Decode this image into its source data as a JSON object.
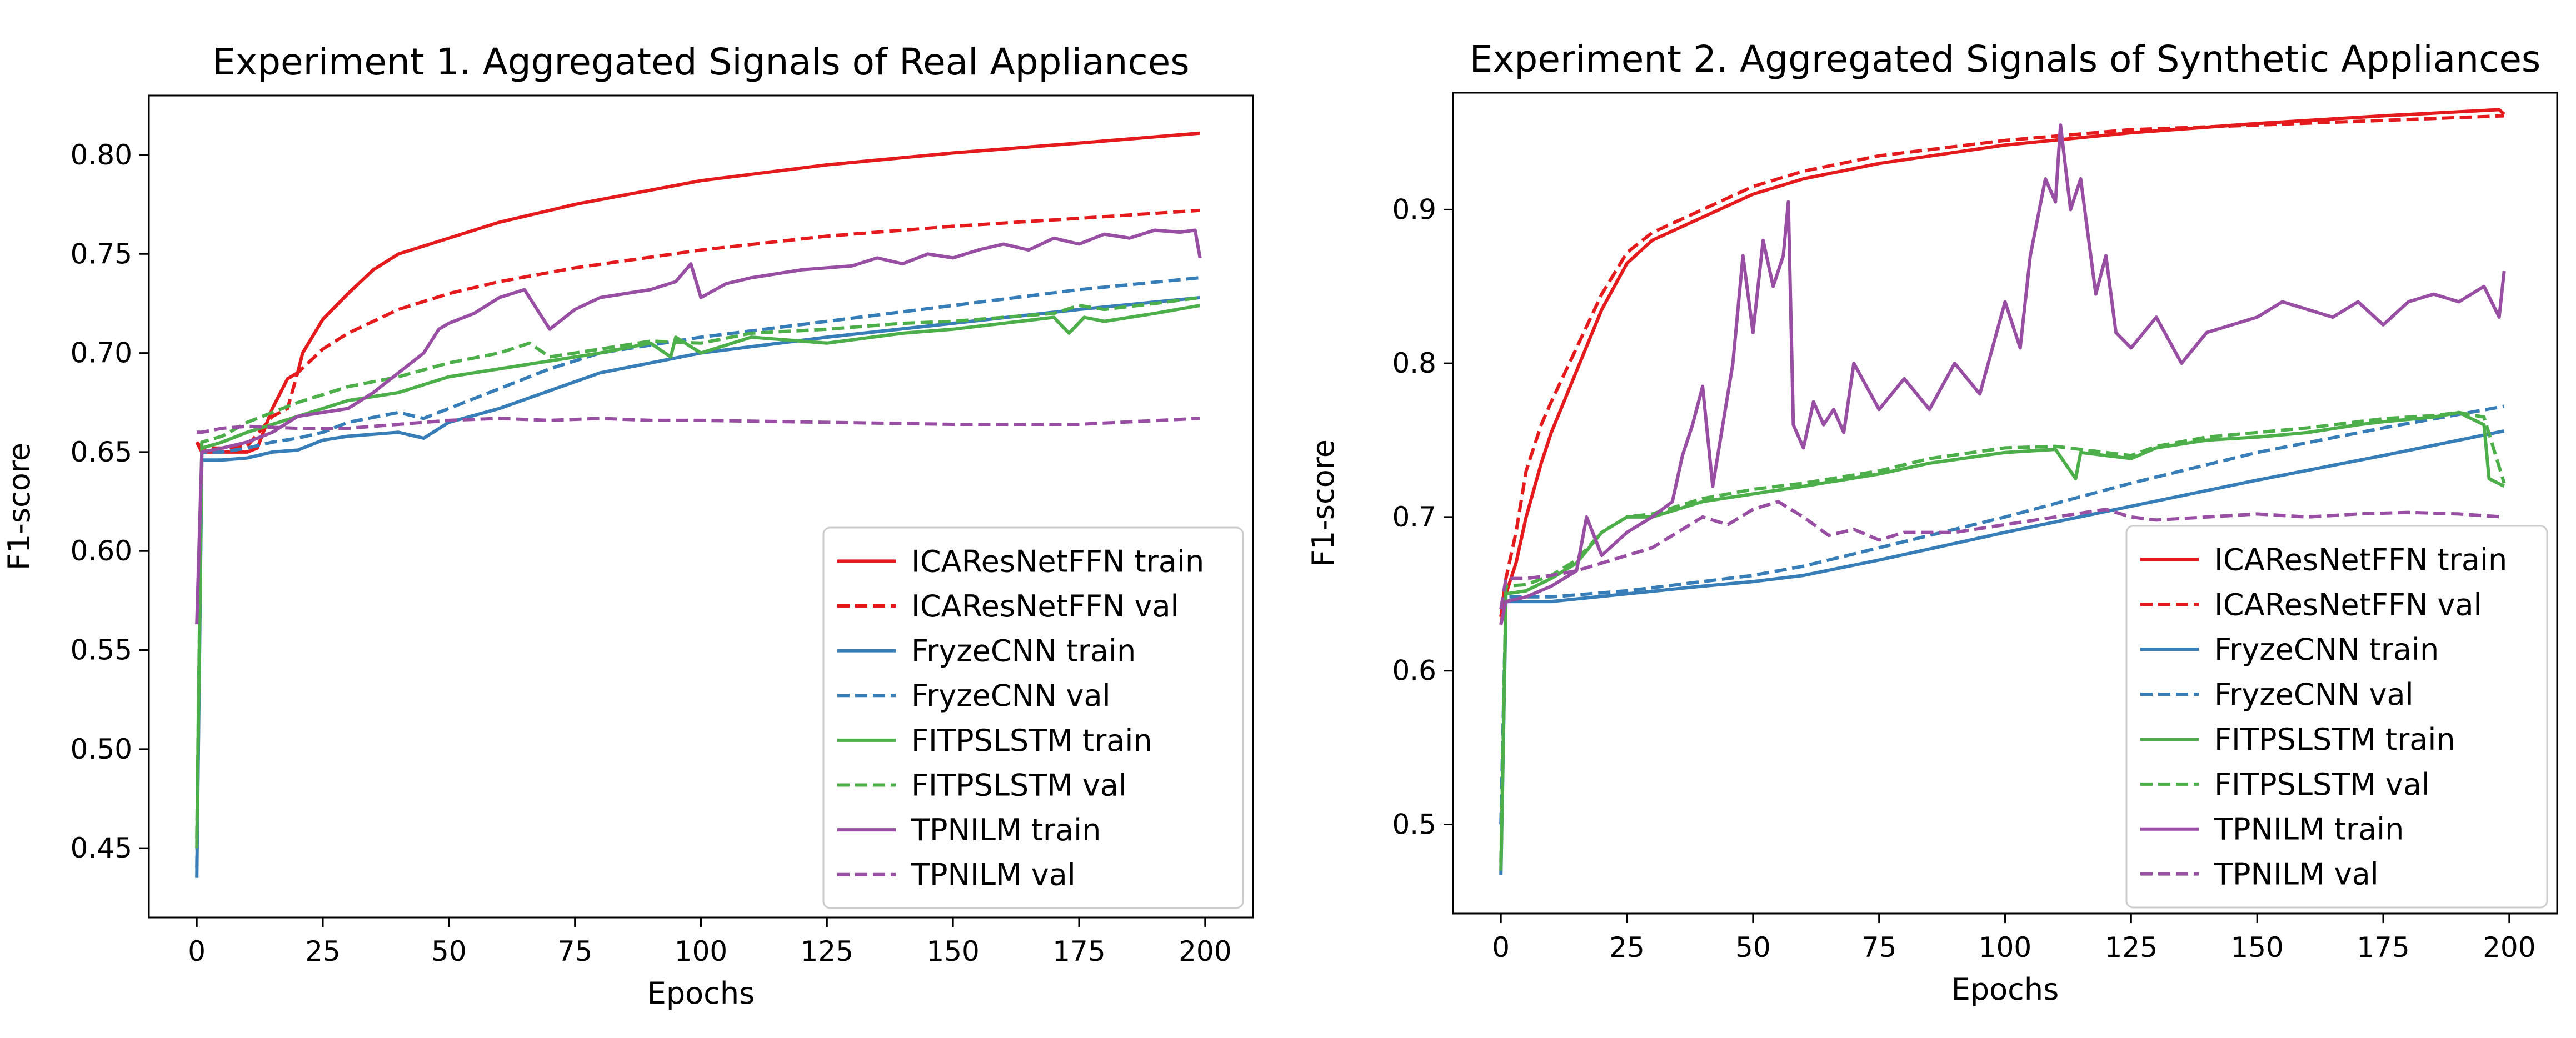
{
  "figure": {
    "title": ""
  },
  "chart_data": [
    {
      "type": "line",
      "title": "Experiment 1. Aggregated Signals of Real Appliances",
      "xlabel": "Epochs",
      "ylabel": "F1-score",
      "xlim": [
        -9.5,
        209.5
      ],
      "ylim": [
        0.415,
        0.83
      ],
      "xticks": [
        0,
        25,
        50,
        75,
        100,
        125,
        150,
        175,
        200
      ],
      "yticks": [
        0.45,
        0.5,
        0.55,
        0.6,
        0.65,
        0.7,
        0.75,
        0.8
      ],
      "tick_decimals": 2,
      "legend_position": "lower-right",
      "series": [
        {
          "name": "ICAResNetFFN train",
          "color": "#e41a1c",
          "style": "solid",
          "x": [
            0,
            1,
            5,
            10,
            12,
            15,
            18,
            20,
            21,
            25,
            30,
            35,
            40,
            50,
            60,
            75,
            100,
            125,
            150,
            175,
            199
          ],
          "y": [
            0.655,
            0.65,
            0.65,
            0.65,
            0.652,
            0.672,
            0.687,
            0.69,
            0.7,
            0.717,
            0.73,
            0.742,
            0.75,
            0.758,
            0.766,
            0.775,
            0.787,
            0.795,
            0.801,
            0.806,
            0.811
          ]
        },
        {
          "name": "ICAResNetFFN val",
          "color": "#e41a1c",
          "style": "dashed",
          "x": [
            0,
            1,
            5,
            10,
            15,
            18,
            20,
            25,
            30,
            40,
            50,
            60,
            75,
            100,
            125,
            150,
            175,
            199
          ],
          "y": [
            0.655,
            0.652,
            0.652,
            0.653,
            0.668,
            0.672,
            0.69,
            0.702,
            0.71,
            0.722,
            0.73,
            0.736,
            0.743,
            0.752,
            0.759,
            0.764,
            0.768,
            0.772
          ]
        },
        {
          "name": "FryzeCNN train",
          "color": "#377eb8",
          "style": "solid",
          "x": [
            0,
            1,
            5,
            10,
            15,
            20,
            25,
            30,
            40,
            45,
            50,
            60,
            70,
            80,
            100,
            125,
            150,
            175,
            199
          ],
          "y": [
            0.435,
            0.646,
            0.646,
            0.647,
            0.65,
            0.651,
            0.656,
            0.658,
            0.66,
            0.657,
            0.665,
            0.672,
            0.681,
            0.69,
            0.7,
            0.708,
            0.715,
            0.722,
            0.728
          ]
        },
        {
          "name": "FryzeCNN val",
          "color": "#377eb8",
          "style": "dashed",
          "x": [
            0,
            1,
            5,
            10,
            15,
            20,
            25,
            30,
            40,
            45,
            50,
            60,
            70,
            80,
            100,
            125,
            150,
            175,
            199
          ],
          "y": [
            0.44,
            0.65,
            0.65,
            0.652,
            0.655,
            0.657,
            0.66,
            0.665,
            0.67,
            0.667,
            0.672,
            0.682,
            0.692,
            0.7,
            0.708,
            0.716,
            0.724,
            0.732,
            0.738
          ]
        },
        {
          "name": "FITPSLSTM train",
          "color": "#4daf4a",
          "style": "solid",
          "x": [
            0,
            1,
            5,
            10,
            20,
            30,
            40,
            50,
            60,
            70,
            80,
            90,
            94,
            95,
            100,
            110,
            125,
            140,
            150,
            160,
            170,
            173,
            176,
            180,
            190,
            199
          ],
          "y": [
            0.45,
            0.652,
            0.655,
            0.66,
            0.668,
            0.676,
            0.68,
            0.688,
            0.692,
            0.696,
            0.7,
            0.705,
            0.698,
            0.708,
            0.7,
            0.708,
            0.705,
            0.71,
            0.712,
            0.715,
            0.718,
            0.71,
            0.718,
            0.716,
            0.72,
            0.724
          ]
        },
        {
          "name": "FITPSLSTM val",
          "color": "#4daf4a",
          "style": "dashed",
          "x": [
            0,
            1,
            5,
            10,
            20,
            30,
            40,
            50,
            60,
            66,
            70,
            80,
            90,
            100,
            110,
            125,
            140,
            150,
            160,
            170,
            175,
            180,
            190,
            199
          ],
          "y": [
            0.455,
            0.655,
            0.658,
            0.665,
            0.675,
            0.683,
            0.688,
            0.695,
            0.7,
            0.705,
            0.698,
            0.702,
            0.706,
            0.705,
            0.71,
            0.712,
            0.715,
            0.716,
            0.718,
            0.72,
            0.724,
            0.722,
            0.725,
            0.728
          ]
        },
        {
          "name": "TPNILM train",
          "color": "#984ea3",
          "style": "solid",
          "x": [
            0,
            1,
            5,
            10,
            15,
            20,
            25,
            30,
            35,
            40,
            45,
            48,
            50,
            55,
            60,
            65,
            70,
            75,
            80,
            85,
            90,
            95,
            98,
            100,
            105,
            110,
            115,
            120,
            125,
            130,
            135,
            140,
            145,
            150,
            155,
            160,
            165,
            170,
            175,
            180,
            185,
            190,
            195,
            198,
            199
          ],
          "y": [
            0.563,
            0.65,
            0.652,
            0.655,
            0.66,
            0.668,
            0.67,
            0.672,
            0.68,
            0.69,
            0.7,
            0.712,
            0.715,
            0.72,
            0.728,
            0.732,
            0.712,
            0.722,
            0.728,
            0.73,
            0.732,
            0.736,
            0.745,
            0.728,
            0.735,
            0.738,
            0.74,
            0.742,
            0.743,
            0.744,
            0.748,
            0.745,
            0.75,
            0.748,
            0.752,
            0.755,
            0.752,
            0.758,
            0.755,
            0.76,
            0.758,
            0.762,
            0.761,
            0.762,
            0.748
          ]
        },
        {
          "name": "TPNILM val",
          "color": "#984ea3",
          "style": "dashed",
          "x": [
            0,
            1,
            5,
            10,
            20,
            30,
            40,
            50,
            60,
            70,
            80,
            90,
            100,
            125,
            150,
            175,
            199
          ],
          "y": [
            0.66,
            0.66,
            0.662,
            0.663,
            0.662,
            0.662,
            0.664,
            0.666,
            0.667,
            0.666,
            0.667,
            0.666,
            0.666,
            0.665,
            0.664,
            0.664,
            0.667
          ]
        }
      ]
    },
    {
      "type": "line",
      "title": "Experiment 2. Aggregated Signals of Synthetic Appliances",
      "xlabel": "Epochs",
      "ylabel": "F1-score",
      "xlim": [
        -9.5,
        209.5
      ],
      "ylim": [
        0.442,
        0.976
      ],
      "xticks": [
        0,
        25,
        50,
        75,
        100,
        125,
        150,
        175,
        200
      ],
      "yticks": [
        0.5,
        0.6,
        0.7,
        0.8,
        0.9
      ],
      "tick_decimals": 1,
      "legend_position": "lower-right",
      "series": [
        {
          "name": "ICAResNetFFN train",
          "color": "#e41a1c",
          "style": "solid",
          "x": [
            0,
            1,
            3,
            5,
            8,
            10,
            15,
            20,
            25,
            30,
            40,
            50,
            60,
            75,
            100,
            125,
            150,
            175,
            198,
            199
          ],
          "y": [
            0.63,
            0.65,
            0.67,
            0.7,
            0.735,
            0.755,
            0.795,
            0.835,
            0.865,
            0.88,
            0.895,
            0.91,
            0.92,
            0.93,
            0.942,
            0.95,
            0.956,
            0.961,
            0.965,
            0.962
          ]
        },
        {
          "name": "ICAResNetFFN val",
          "color": "#e41a1c",
          "style": "dashed",
          "x": [
            0,
            1,
            3,
            5,
            8,
            10,
            15,
            20,
            25,
            30,
            40,
            50,
            60,
            75,
            100,
            125,
            150,
            175,
            199
          ],
          "y": [
            0.635,
            0.66,
            0.69,
            0.73,
            0.76,
            0.775,
            0.81,
            0.845,
            0.872,
            0.885,
            0.9,
            0.915,
            0.925,
            0.935,
            0.945,
            0.952,
            0.955,
            0.958,
            0.961
          ]
        },
        {
          "name": "FryzeCNN train",
          "color": "#377eb8",
          "style": "solid",
          "x": [
            0,
            1,
            5,
            10,
            25,
            40,
            50,
            60,
            75,
            100,
            125,
            150,
            175,
            199
          ],
          "y": [
            0.467,
            0.645,
            0.645,
            0.645,
            0.65,
            0.655,
            0.658,
            0.662,
            0.672,
            0.69,
            0.707,
            0.724,
            0.74,
            0.756
          ]
        },
        {
          "name": "FryzeCNN val",
          "color": "#377eb8",
          "style": "dashed",
          "x": [
            0,
            1,
            5,
            10,
            25,
            40,
            50,
            60,
            75,
            100,
            125,
            150,
            175,
            199
          ],
          "y": [
            0.5,
            0.648,
            0.648,
            0.648,
            0.652,
            0.658,
            0.662,
            0.668,
            0.68,
            0.7,
            0.722,
            0.742,
            0.758,
            0.772
          ]
        },
        {
          "name": "FITPSLSTM train",
          "color": "#4daf4a",
          "style": "solid",
          "x": [
            0,
            1,
            5,
            10,
            15,
            20,
            25,
            30,
            40,
            50,
            60,
            75,
            85,
            100,
            110,
            114,
            115,
            120,
            125,
            130,
            140,
            150,
            160,
            170,
            175,
            185,
            190,
            195,
            196,
            199
          ],
          "y": [
            0.47,
            0.65,
            0.652,
            0.66,
            0.67,
            0.69,
            0.7,
            0.7,
            0.71,
            0.715,
            0.72,
            0.728,
            0.735,
            0.742,
            0.744,
            0.725,
            0.742,
            0.74,
            0.738,
            0.745,
            0.75,
            0.752,
            0.755,
            0.76,
            0.762,
            0.765,
            0.768,
            0.76,
            0.725,
            0.72
          ]
        },
        {
          "name": "FITPSLSTM val",
          "color": "#4daf4a",
          "style": "dashed",
          "x": [
            0,
            1,
            5,
            10,
            15,
            20,
            25,
            30,
            40,
            50,
            60,
            75,
            85,
            100,
            110,
            120,
            125,
            130,
            140,
            150,
            160,
            170,
            175,
            185,
            190,
            195,
            199
          ],
          "y": [
            0.475,
            0.655,
            0.656,
            0.662,
            0.672,
            0.69,
            0.7,
            0.702,
            0.712,
            0.718,
            0.722,
            0.73,
            0.738,
            0.745,
            0.746,
            0.742,
            0.74,
            0.746,
            0.752,
            0.755,
            0.758,
            0.762,
            0.764,
            0.766,
            0.768,
            0.765,
            0.722
          ]
        },
        {
          "name": "TPNILM train",
          "color": "#984ea3",
          "style": "solid",
          "x": [
            0,
            1,
            5,
            10,
            15,
            17,
            20,
            25,
            30,
            34,
            36,
            38,
            40,
            42,
            44,
            46,
            48,
            50,
            52,
            54,
            56,
            57,
            58,
            60,
            62,
            64,
            66,
            68,
            70,
            75,
            80,
            85,
            90,
            95,
            100,
            103,
            105,
            108,
            110,
            111,
            113,
            115,
            118,
            120,
            122,
            125,
            130,
            135,
            140,
            150,
            155,
            160,
            165,
            170,
            175,
            180,
            185,
            190,
            195,
            198,
            199
          ],
          "y": [
            0.63,
            0.645,
            0.648,
            0.655,
            0.665,
            0.7,
            0.675,
            0.69,
            0.7,
            0.71,
            0.74,
            0.76,
            0.785,
            0.72,
            0.76,
            0.8,
            0.87,
            0.82,
            0.88,
            0.85,
            0.87,
            0.905,
            0.76,
            0.745,
            0.775,
            0.76,
            0.77,
            0.755,
            0.8,
            0.77,
            0.79,
            0.77,
            0.8,
            0.78,
            0.84,
            0.81,
            0.87,
            0.92,
            0.905,
            0.955,
            0.9,
            0.92,
            0.845,
            0.87,
            0.82,
            0.81,
            0.83,
            0.8,
            0.82,
            0.83,
            0.84,
            0.835,
            0.83,
            0.84,
            0.825,
            0.84,
            0.845,
            0.84,
            0.85,
            0.83,
            0.86
          ]
        },
        {
          "name": "TPNILM val",
          "color": "#984ea3",
          "style": "dashed",
          "x": [
            0,
            1,
            5,
            10,
            15,
            20,
            25,
            30,
            35,
            40,
            45,
            50,
            55,
            60,
            65,
            70,
            75,
            80,
            90,
            100,
            110,
            120,
            125,
            130,
            140,
            150,
            160,
            170,
            180,
            190,
            199
          ],
          "y": [
            0.64,
            0.66,
            0.66,
            0.662,
            0.665,
            0.67,
            0.675,
            0.68,
            0.69,
            0.7,
            0.695,
            0.705,
            0.71,
            0.7,
            0.688,
            0.692,
            0.685,
            0.69,
            0.69,
            0.695,
            0.7,
            0.705,
            0.7,
            0.698,
            0.7,
            0.702,
            0.7,
            0.702,
            0.703,
            0.702,
            0.7
          ]
        }
      ]
    }
  ]
}
